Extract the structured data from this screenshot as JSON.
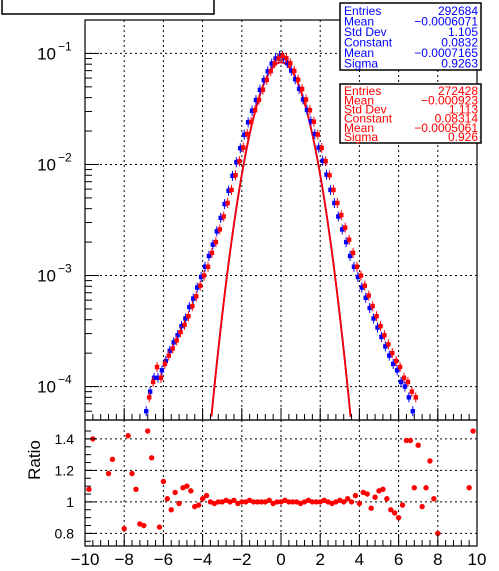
{
  "chart_data": {
    "type": "scatter",
    "title": "",
    "xlim": [
      -10,
      10
    ],
    "x_ticks": [
      -10,
      -8,
      -6,
      -4,
      -2,
      0,
      2,
      4,
      6,
      8,
      10
    ],
    "x_tick_labels": [
      "−10",
      "−8",
      "−6",
      "−4",
      "−2",
      "0",
      "2",
      "4",
      "6",
      "8",
      "10"
    ],
    "grid": true,
    "top_panel": {
      "yscale": "log",
      "ylim": [
        5e-05,
        0.2
      ],
      "y_ticks": [
        0.0001,
        0.001,
        0.01,
        0.1
      ],
      "y_tick_labels": [
        {
          "base": "10",
          "exp": "−4"
        },
        {
          "base": "10",
          "exp": "−3"
        },
        {
          "base": "10",
          "exp": "−2"
        },
        {
          "base": "10",
          "exp": "−1"
        }
      ],
      "series": [
        {
          "color": "#0000ff",
          "marker": "square",
          "x": [
            -6.8,
            -6.6,
            -6.4,
            -6.2,
            -6.0,
            -5.8,
            -5.6,
            -5.4,
            -5.2,
            -5.0,
            -4.8,
            -4.6,
            -4.4,
            -4.2,
            -4.0,
            -3.8,
            -3.6,
            -3.4,
            -3.2,
            -3.0,
            -2.8,
            -2.6,
            -2.4,
            -2.2,
            -2.0,
            -1.8,
            -1.6,
            -1.4,
            -1.2,
            -1.0,
            -0.8,
            -0.6,
            -0.4,
            -0.2,
            0.0,
            0.2,
            0.4,
            0.6,
            0.8,
            1.0,
            1.2,
            1.4,
            1.6,
            1.8,
            2.0,
            2.2,
            2.4,
            2.6,
            2.8,
            3.0,
            3.2,
            3.4,
            3.6,
            3.8,
            4.0,
            4.2,
            4.4,
            4.6,
            4.8,
            5.0,
            5.2,
            5.4,
            5.6,
            5.8,
            6.0,
            6.2,
            6.4,
            6.6,
            6.8
          ],
          "y": [
            6e-05,
            9e-05,
            0.00012,
            0.00012,
            0.00014,
            0.00017,
            0.00021,
            0.00025,
            0.00029,
            0.00035,
            0.00041,
            0.00052,
            0.00062,
            0.00078,
            0.00097,
            0.0012,
            0.0015,
            0.0019,
            0.0025,
            0.0033,
            0.0044,
            0.0058,
            0.0079,
            0.0105,
            0.014,
            0.0185,
            0.024,
            0.0305,
            0.038,
            0.047,
            0.0575,
            0.069,
            0.081,
            0.09,
            0.095,
            0.091,
            0.082,
            0.07,
            0.0585,
            0.048,
            0.0385,
            0.031,
            0.0245,
            0.0188,
            0.0142,
            0.0108,
            0.0081,
            0.0059,
            0.0045,
            0.0034,
            0.0026,
            0.002,
            0.0015,
            0.0012,
            0.00097,
            0.00078,
            0.00063,
            0.00051,
            0.00041,
            0.00034,
            0.00028,
            0.00023,
            0.00019,
            0.00016,
            0.00014,
            0.00011,
            0.0001,
            8e-05,
            6e-05
          ]
        },
        {
          "color": "#ff0000",
          "marker": "square",
          "x": [
            -6.8,
            -6.6,
            -6.4,
            -6.2,
            -6.0,
            -5.8,
            -5.6,
            -5.4,
            -5.2,
            -5.0,
            -4.8,
            -4.6,
            -4.4,
            -4.2,
            -4.0,
            -3.8,
            -3.6,
            -3.4,
            -3.2,
            -3.0,
            -2.8,
            -2.6,
            -2.4,
            -2.2,
            -2.0,
            -1.8,
            -1.6,
            -1.4,
            -1.2,
            -1.0,
            -0.8,
            -0.6,
            -0.4,
            -0.2,
            0.0,
            0.2,
            0.4,
            0.6,
            0.8,
            1.0,
            1.2,
            1.4,
            1.6,
            1.8,
            2.0,
            2.2,
            2.4,
            2.6,
            2.8,
            3.0,
            3.2,
            3.4,
            3.6,
            3.8,
            4.0,
            4.2,
            4.4,
            4.6,
            4.8,
            5.0,
            5.2,
            5.4,
            5.6,
            5.8,
            6.0,
            6.2,
            6.4,
            6.6,
            6.8
          ],
          "y": [
            8e-05,
            0.00011,
            0.00015,
            0.00012,
            0.00016,
            0.00019,
            0.00022,
            0.00026,
            0.00031,
            0.00036,
            0.00043,
            0.00053,
            0.00065,
            0.00081,
            0.001,
            0.0012,
            0.0016,
            0.002,
            0.0026,
            0.0034,
            0.0045,
            0.0059,
            0.008,
            0.0107,
            0.0142,
            0.0188,
            0.0242,
            0.0308,
            0.0382,
            0.0472,
            0.0578,
            0.0693,
            0.0812,
            0.0902,
            0.0948,
            0.0905,
            0.0815,
            0.0695,
            0.058,
            0.0478,
            0.0384,
            0.0308,
            0.0243,
            0.0186,
            0.0141,
            0.0107,
            0.008,
            0.0059,
            0.0045,
            0.0035,
            0.0027,
            0.0021,
            0.0016,
            0.0012,
            0.001,
            0.00081,
            0.00066,
            0.00053,
            0.00043,
            0.00035,
            0.00029,
            0.00024,
            0.0002,
            0.00017,
            0.00015,
            0.00012,
            0.00011,
            9e-05,
            8e-05
          ]
        }
      ],
      "fits": [
        {
          "color": "#0000ff",
          "constant": 0.0832,
          "mean": -0.0007165,
          "sigma": 0.9263
        },
        {
          "color": "#ff0000",
          "constant": 0.08314,
          "mean": -0.0005061,
          "sigma": 0.926
        }
      ]
    },
    "ratio_panel": {
      "ylabel": "Ratio",
      "ylim": [
        0.72,
        1.52
      ],
      "y_ticks": [
        0.8,
        1.0,
        1.2,
        1.4
      ],
      "y_tick_labels": [
        "0.8",
        "1",
        "1.2",
        "1.4"
      ],
      "color": "#ff0000",
      "x": [
        -9.8,
        -9.6,
        -8.8,
        -8.6,
        -8.0,
        -7.8,
        -7.6,
        -7.4,
        -7.2,
        -7.0,
        -6.8,
        -6.6,
        -6.2,
        -6.0,
        -5.8,
        -5.6,
        -5.4,
        -5.2,
        -5.0,
        -4.8,
        -4.6,
        -4.4,
        -4.2,
        -4.0,
        -3.8,
        -3.6,
        -3.4,
        -3.2,
        -3.0,
        -2.8,
        -2.6,
        -2.4,
        -2.2,
        -2.0,
        -1.8,
        -1.6,
        -1.4,
        -1.2,
        -1.0,
        -0.8,
        -0.6,
        -0.4,
        -0.2,
        0.0,
        0.2,
        0.4,
        0.6,
        0.8,
        1.0,
        1.2,
        1.4,
        1.6,
        1.8,
        2.0,
        2.2,
        2.4,
        2.6,
        2.8,
        3.0,
        3.2,
        3.4,
        3.6,
        3.8,
        4.0,
        4.2,
        4.4,
        4.6,
        4.8,
        5.0,
        5.2,
        5.4,
        5.6,
        5.8,
        6.0,
        6.2,
        6.4,
        6.6,
        6.8,
        7.0,
        7.2,
        7.4,
        7.6,
        7.8,
        8.0,
        9.6,
        9.8
      ],
      "y": [
        1.08,
        1.4,
        1.18,
        1.27,
        0.83,
        1.42,
        1.18,
        1.08,
        0.86,
        0.85,
        1.45,
        1.28,
        0.84,
        1.13,
        1.02,
        0.95,
        1.06,
        0.99,
        1.09,
        1.1,
        1.07,
        0.97,
        0.98,
        1.02,
        1.04,
        1.0,
        0.99,
        1.0,
        1.0,
        1.01,
        1.0,
        1.01,
        0.99,
        1.0,
        1.0,
        1.01,
        1.0,
        1.0,
        1.0,
        1.0,
        1.01,
        0.99,
        1.0,
        1.0,
        1.01,
        1.0,
        1.0,
        1.0,
        0.99,
        1.0,
        1.01,
        1.0,
        1.0,
        1.0,
        1.01,
        1.0,
        0.99,
        1.0,
        1.01,
        1.0,
        1.02,
        1.0,
        1.04,
        0.99,
        1.06,
        1.05,
        0.96,
        1.03,
        1.07,
        1.08,
        1.02,
        0.95,
        0.93,
        0.9,
        0.98,
        1.39,
        1.39,
        1.09,
        1.36,
        0.97,
        1.09,
        1.26,
        1.02,
        0.8,
        1.09,
        1.45
      ]
    },
    "stats_boxes": [
      {
        "color": "#0000ff",
        "rows": [
          {
            "label": "Entries",
            "value": "292684"
          },
          {
            "label": "Mean",
            "value": "−0.0006071"
          },
          {
            "label": "Std Dev",
            "value": "1.105"
          },
          {
            "label": "Constant",
            "value": "0.0832"
          },
          {
            "label": "Mean",
            "value": "−0.0007165"
          },
          {
            "label": "Sigma",
            "value": "0.9263"
          }
        ]
      },
      {
        "color": "#ff0000",
        "rows": [
          {
            "label": "Entries",
            "value": "272428"
          },
          {
            "label": "Mean",
            "value": "−0.000923"
          },
          {
            "label": "Std Dev",
            "value": "1.113"
          },
          {
            "label": "Constant",
            "value": "0.08314"
          },
          {
            "label": "Mean",
            "value": "−0.0005061"
          },
          {
            "label": "Sigma",
            "value": "0.926"
          }
        ]
      }
    ]
  }
}
